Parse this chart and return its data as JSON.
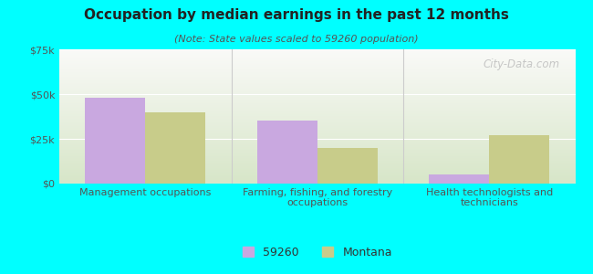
{
  "title": "Occupation by median earnings in the past 12 months",
  "subtitle": "(Note: State values scaled to 59260 population)",
  "categories": [
    "Management occupations",
    "Farming, fishing, and forestry\noccupations",
    "Health technologists and\ntechnicians"
  ],
  "series_59260": [
    48000,
    35000,
    5000
  ],
  "series_montana": [
    40000,
    20000,
    27000
  ],
  "color_59260": "#c9a8e0",
  "color_montana": "#c8cc8a",
  "ylim": [
    0,
    75000
  ],
  "yticks": [
    0,
    25000,
    50000,
    75000
  ],
  "ytick_labels": [
    "$0",
    "$25k",
    "$50k",
    "$75k"
  ],
  "background_color": "#00ffff",
  "legend_label_59260": "59260",
  "legend_label_montana": "Montana",
  "bar_width": 0.35,
  "watermark": "City-Data.com"
}
